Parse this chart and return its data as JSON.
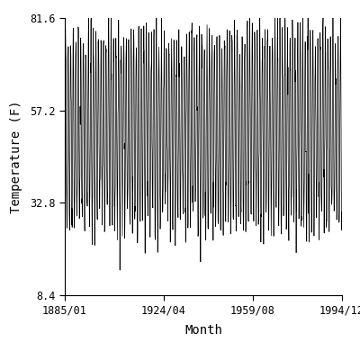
{
  "title": "",
  "xlabel": "Month",
  "ylabel": "Temperature (F)",
  "xlim_start_year": 1885,
  "xlim_start_month": 1,
  "xlim_end_year": 1994,
  "xlim_end_month": 12,
  "ylim": [
    8.4,
    81.6
  ],
  "yticks": [
    8.4,
    32.8,
    57.2,
    81.6
  ],
  "xtick_labels": [
    "1885/01",
    "1924/04",
    "1959/08",
    "1994/12"
  ],
  "xtick_years": [
    1885,
    1924,
    1959,
    1994
  ],
  "xtick_months": [
    1,
    4,
    8,
    12
  ],
  "line_color": "#000000",
  "line_width": 0.5,
  "bg_color": "#ffffff",
  "mean_temp": 52.0,
  "amplitude": 24.0,
  "noise_std": 4.0,
  "figsize": [
    4.0,
    4.0
  ],
  "dpi": 100
}
